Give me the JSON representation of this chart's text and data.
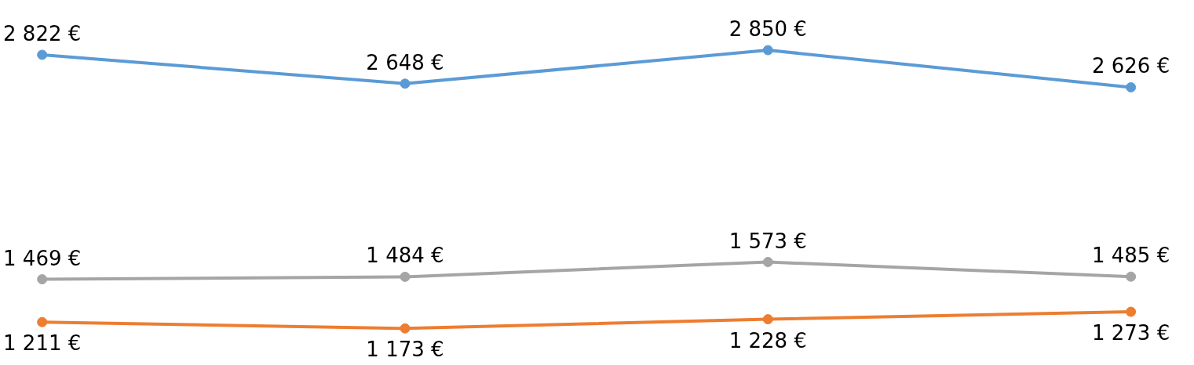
{
  "chart_data": {
    "type": "line",
    "categories": [
      null,
      null,
      null,
      null
    ],
    "ylim": [
      950,
      3150
    ],
    "tick_labels": false,
    "grid": false,
    "marker": "circle",
    "line_style": "solid",
    "series": [
      {
        "color": "#5b9bd5",
        "values": [
          2822,
          2648,
          2850,
          2626
        ],
        "value_labels": [
          "2 822 €",
          "2 648 €",
          "2 850 €",
          "2 626 €"
        ]
      },
      {
        "color": "#ed7d31",
        "values": [
          1211,
          1173,
          1228,
          1273
        ],
        "value_labels": [
          "1 211 €",
          "1 173 €",
          "1 228 €",
          "1 273 €"
        ]
      },
      {
        "color": "#a5a5a5",
        "values": [
          1469,
          1484,
          1573,
          1485
        ],
        "value_labels": [
          "1 469 €",
          "1 484 €",
          "1 573 €",
          "1 485 €"
        ]
      }
    ]
  }
}
